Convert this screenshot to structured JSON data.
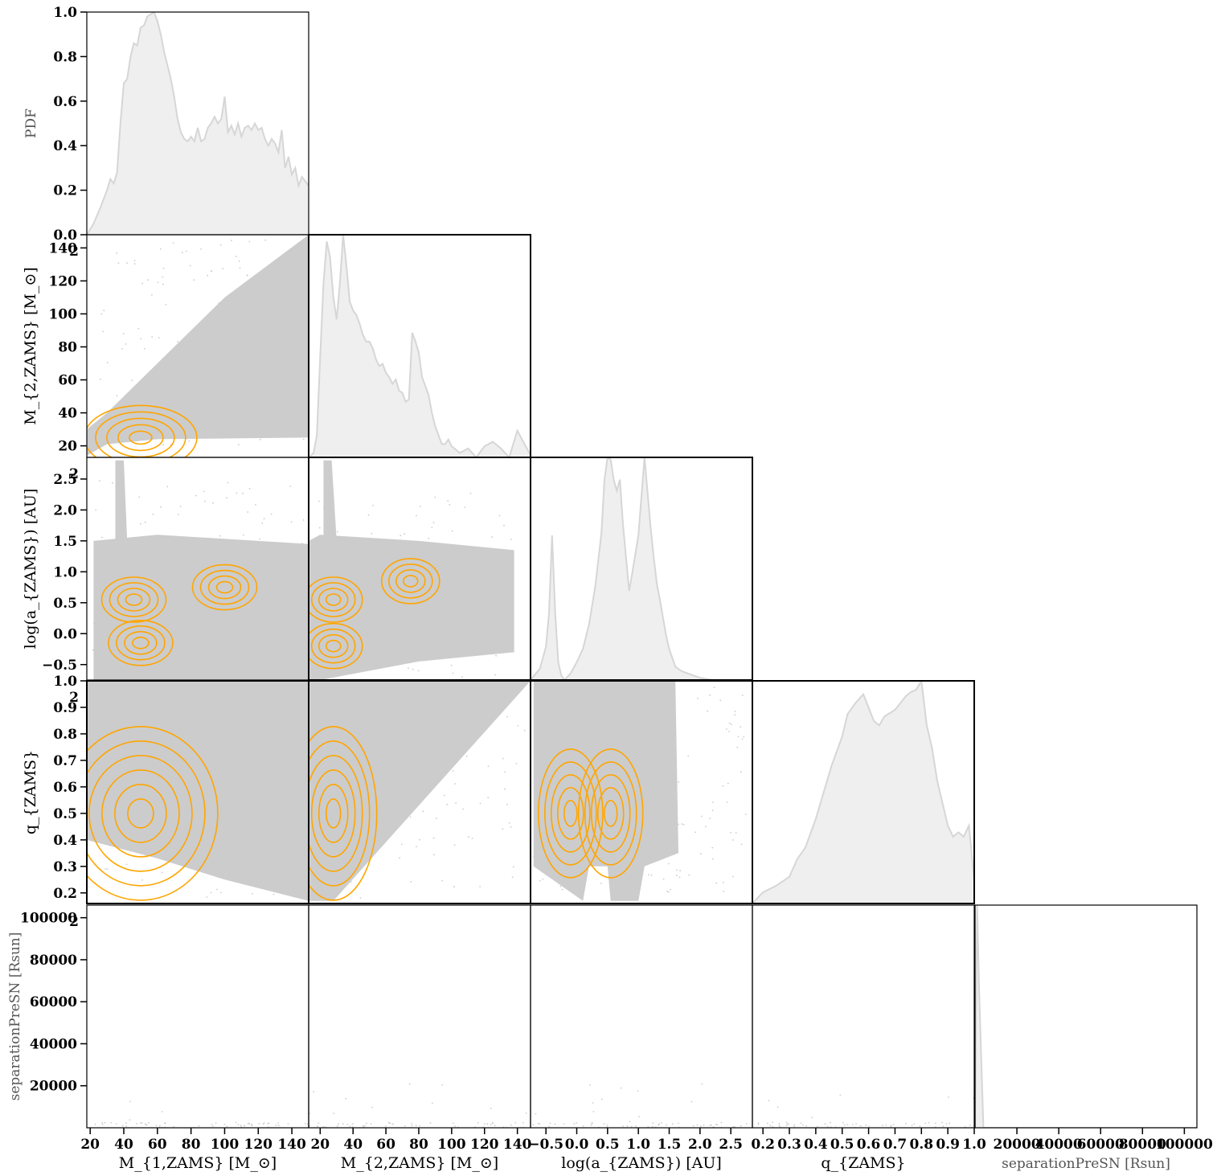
{
  "figure": {
    "title": "",
    "variables": [
      "M1ZAMS",
      "M2ZAMS",
      "logaZAMS",
      "qZAMS",
      "separationPreSN"
    ],
    "labels": {
      "M1ZAMS": "M_{1,ZAMS} [M_⊙]",
      "M2ZAMS": "M_{2,ZAMS} [M_⊙]",
      "logaZAMS": "log(a_{ZAMS}) [AU]",
      "qZAMS": "q_{ZAMS}",
      "separationPreSN": "separationPreSN [Rsun]"
    },
    "pdf_label": "PDF",
    "stray_tick_label": "2",
    "colors": {
      "scatter": "#cccccc",
      "kde_fill": "#efefef",
      "kde_line": "#d6d6d6",
      "contour": "#ffa500",
      "frame": "#000000"
    }
  },
  "chart_data": {
    "type": "pairplot",
    "axes": {
      "M1ZAMS": {
        "range": [
          18,
          150
        ],
        "ticks": [
          20,
          40,
          60,
          80,
          100,
          120,
          140
        ]
      },
      "M2ZAMS": {
        "range": [
          13,
          148
        ],
        "ticks": [
          20,
          40,
          60,
          80,
          100,
          120,
          140
        ]
      },
      "logaZAMS": {
        "range": [
          -0.75,
          2.85
        ],
        "ticks": [
          -0.5,
          0.0,
          0.5,
          1.0,
          1.5,
          2.0,
          2.5
        ]
      },
      "qZAMS": {
        "range": [
          0.16,
          1.0
        ],
        "ticks": [
          0.2,
          0.3,
          0.4,
          0.5,
          0.6,
          0.7,
          0.8,
          0.9,
          1.0
        ]
      },
      "separationPreSN": {
        "range": [
          0,
          106000
        ],
        "ticks": [
          20000,
          40000,
          60000,
          80000,
          100000
        ]
      },
      "pdf": {
        "range": [
          0,
          1
        ],
        "ticks": [
          0.0,
          0.2,
          0.4,
          0.6,
          0.8,
          1.0
        ]
      }
    },
    "diagonal_kde": {
      "M1ZAMS": {
        "x": [
          18,
          22,
          26,
          30,
          32,
          34,
          36,
          38,
          40,
          42,
          44,
          46,
          48,
          50,
          52,
          54,
          56,
          58,
          60,
          62,
          64,
          66,
          68,
          70,
          72,
          74,
          76,
          78,
          80,
          82,
          84,
          86,
          88,
          90,
          92,
          94,
          96,
          98,
          100,
          102,
          104,
          106,
          108,
          110,
          112,
          114,
          116,
          118,
          120,
          122,
          124,
          126,
          128,
          130,
          132,
          134,
          136,
          138,
          140,
          142,
          144,
          146,
          148,
          150
        ],
        "y": [
          0.0,
          0.05,
          0.12,
          0.2,
          0.25,
          0.23,
          0.28,
          0.5,
          0.68,
          0.7,
          0.8,
          0.86,
          0.85,
          0.93,
          0.94,
          0.98,
          0.99,
          1.0,
          0.96,
          0.9,
          0.82,
          0.76,
          0.7,
          0.62,
          0.52,
          0.46,
          0.43,
          0.42,
          0.44,
          0.42,
          0.48,
          0.42,
          0.43,
          0.48,
          0.5,
          0.53,
          0.5,
          0.52,
          0.62,
          0.46,
          0.49,
          0.45,
          0.5,
          0.44,
          0.48,
          0.49,
          0.47,
          0.5,
          0.47,
          0.48,
          0.43,
          0.4,
          0.43,
          0.41,
          0.37,
          0.47,
          0.3,
          0.35,
          0.27,
          0.3,
          0.22,
          0.26,
          0.24,
          0.22
        ]
      },
      "M2ZAMS": {
        "x": [
          13,
          16,
          18,
          20,
          22,
          24,
          26,
          28,
          30,
          32,
          34,
          36,
          38,
          40,
          42,
          44,
          46,
          48,
          50,
          52,
          54,
          56,
          58,
          60,
          62,
          64,
          66,
          68,
          70,
          72,
          74,
          76,
          78,
          80,
          82,
          84,
          86,
          88,
          90,
          92,
          94,
          96,
          98,
          100,
          105,
          110,
          115,
          120,
          125,
          130,
          135,
          140,
          148
        ],
        "y": [
          0.0,
          0.02,
          0.1,
          0.45,
          0.78,
          0.97,
          0.9,
          0.72,
          0.62,
          0.78,
          1.0,
          0.86,
          0.7,
          0.66,
          0.64,
          0.6,
          0.55,
          0.52,
          0.52,
          0.49,
          0.44,
          0.41,
          0.42,
          0.38,
          0.36,
          0.33,
          0.35,
          0.3,
          0.29,
          0.25,
          0.26,
          0.56,
          0.52,
          0.47,
          0.36,
          0.32,
          0.28,
          0.2,
          0.14,
          0.1,
          0.06,
          0.06,
          0.08,
          0.05,
          0.02,
          0.04,
          0.0,
          0.05,
          0.07,
          0.04,
          0.0,
          0.12,
          0.01
        ]
      },
      "logaZAMS": {
        "x": [
          -0.75,
          -0.6,
          -0.5,
          -0.45,
          -0.4,
          -0.35,
          -0.3,
          -0.25,
          -0.2,
          -0.1,
          0.0,
          0.1,
          0.2,
          0.3,
          0.4,
          0.45,
          0.5,
          0.55,
          0.6,
          0.65,
          0.7,
          0.75,
          0.8,
          0.85,
          0.9,
          1.0,
          1.1,
          1.2,
          1.25,
          1.3,
          1.35,
          1.4,
          1.45,
          1.5,
          1.55,
          1.6,
          1.7,
          1.8,
          1.9,
          2.0,
          2.2,
          2.5,
          2.85
        ],
        "y": [
          0.0,
          0.05,
          0.15,
          0.3,
          0.65,
          0.3,
          0.08,
          0.02,
          0.0,
          0.03,
          0.08,
          0.14,
          0.25,
          0.42,
          0.66,
          0.9,
          1.0,
          0.99,
          0.9,
          0.85,
          0.9,
          0.7,
          0.55,
          0.4,
          0.48,
          0.65,
          1.0,
          0.68,
          0.55,
          0.43,
          0.36,
          0.28,
          0.2,
          0.14,
          0.1,
          0.06,
          0.04,
          0.03,
          0.02,
          0.01,
          0.0,
          0.0,
          0.0
        ]
      },
      "qZAMS": {
        "x": [
          0.16,
          0.2,
          0.25,
          0.3,
          0.33,
          0.36,
          0.4,
          0.43,
          0.46,
          0.5,
          0.52,
          0.55,
          0.58,
          0.6,
          0.62,
          0.64,
          0.66,
          0.7,
          0.72,
          0.74,
          0.76,
          0.78,
          0.8,
          0.82,
          0.84,
          0.86,
          0.88,
          0.9,
          0.92,
          0.94,
          0.96,
          0.98,
          1.0
        ],
        "y": [
          0.0,
          0.05,
          0.08,
          0.12,
          0.2,
          0.25,
          0.38,
          0.5,
          0.62,
          0.75,
          0.85,
          0.9,
          0.94,
          0.88,
          0.82,
          0.8,
          0.84,
          0.87,
          0.9,
          0.93,
          0.95,
          0.96,
          1.0,
          0.8,
          0.7,
          0.55,
          0.45,
          0.35,
          0.3,
          0.32,
          0.3,
          0.35,
          0.1
        ]
      },
      "separationPreSN": {
        "x": [
          0,
          1000,
          2000,
          4000,
          106000
        ],
        "y": [
          0.0,
          1.0,
          0.6,
          0.0,
          0.0
        ]
      }
    },
    "contours": {
      "M1ZAMS_vs_M2ZAMS": {
        "center": [
          50,
          25
        ],
        "levels": 5
      },
      "M1ZAMS_vs_logaZAMS": {
        "centers": [
          [
            46,
            0.55
          ],
          [
            50,
            -0.15
          ],
          [
            100,
            0.75
          ]
        ],
        "levels": 4
      },
      "M1ZAMS_vs_qZAMS": {
        "center": [
          50,
          0.5
        ],
        "levels": 6
      },
      "M2ZAMS_vs_logaZAMS": {
        "centers": [
          [
            28,
            0.55
          ],
          [
            28,
            -0.2
          ],
          [
            75,
            0.85
          ]
        ],
        "levels": 4
      },
      "M2ZAMS_vs_qZAMS": {
        "center": [
          28,
          0.5
        ],
        "levels": 6
      },
      "logaZAMS_vs_qZAMS": {
        "centers": [
          [
            -0.1,
            0.5
          ],
          [
            0.55,
            0.5
          ]
        ],
        "levels": 5
      }
    }
  }
}
